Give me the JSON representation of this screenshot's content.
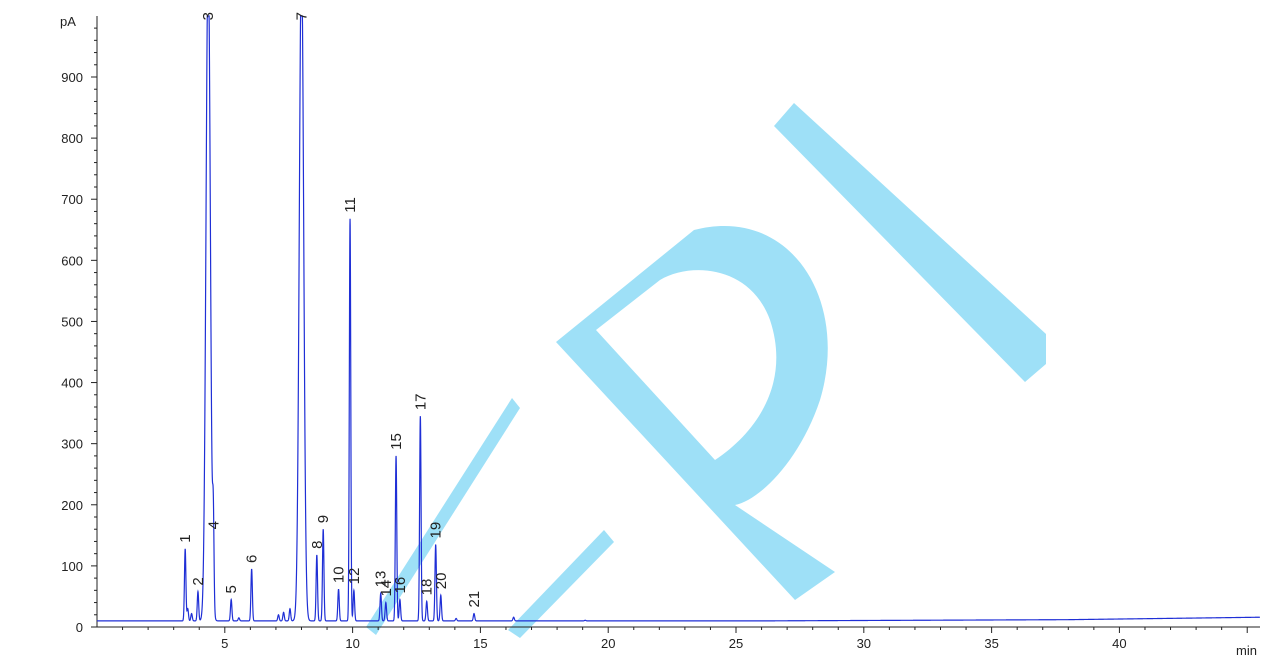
{
  "colors": {
    "trace": "#1f2fd6",
    "axis": "#222222",
    "watermark": "#9ee0f7"
  },
  "chart_data": {
    "type": "line",
    "title": "",
    "xlabel": "min",
    "ylabel": "pA",
    "xlim": [
      0,
      45.5
    ],
    "ylim": [
      0,
      1000
    ],
    "baseline": 10,
    "x_ticks": [
      5,
      10,
      15,
      20,
      25,
      30,
      35,
      40
    ],
    "x_tick_labels": [
      "5",
      "10",
      "15",
      "20",
      "25",
      "30",
      "35",
      "40"
    ],
    "y_ticks": [
      0,
      100,
      200,
      300,
      400,
      500,
      600,
      700,
      800,
      900
    ],
    "y_tick_labels": [
      "0",
      "100",
      "200",
      "300",
      "400",
      "500",
      "600",
      "700",
      "800",
      "900"
    ],
    "peaks": [
      {
        "label": "1",
        "time": 3.45,
        "height": 128
      },
      {
        "label": "2",
        "time": 3.95,
        "height": 58
      },
      {
        "label": "3",
        "time": 4.35,
        "height": 1100
      },
      {
        "label": "4",
        "time": 4.55,
        "height": 150
      },
      {
        "label": "5",
        "time": 5.25,
        "height": 45
      },
      {
        "label": "6",
        "time": 6.05,
        "height": 95
      },
      {
        "label": "7",
        "time": 8.0,
        "height": 1100
      },
      {
        "label": "8",
        "time": 8.6,
        "height": 118
      },
      {
        "label": "9",
        "time": 8.85,
        "height": 160
      },
      {
        "label": "10",
        "time": 9.45,
        "height": 62
      },
      {
        "label": "11",
        "time": 9.9,
        "height": 668
      },
      {
        "label": "12",
        "time": 10.05,
        "height": 60
      },
      {
        "label": "13",
        "time": 11.1,
        "height": 55
      },
      {
        "label": "14",
        "time": 11.3,
        "height": 40
      },
      {
        "label": "15",
        "time": 11.7,
        "height": 280
      },
      {
        "label": "16",
        "time": 11.85,
        "height": 45
      },
      {
        "label": "17",
        "time": 12.65,
        "height": 345
      },
      {
        "label": "18",
        "time": 12.9,
        "height": 42
      },
      {
        "label": "19",
        "time": 13.25,
        "height": 135
      },
      {
        "label": "20",
        "time": 13.45,
        "height": 52
      },
      {
        "label": "21",
        "time": 14.75,
        "height": 22
      }
    ],
    "minor_peaks": [
      {
        "time": 3.55,
        "height": 30
      },
      {
        "time": 3.7,
        "height": 22
      },
      {
        "time": 5.55,
        "height": 15
      },
      {
        "time": 7.1,
        "height": 20
      },
      {
        "time": 7.3,
        "height": 24
      },
      {
        "time": 7.55,
        "height": 30
      },
      {
        "time": 14.05,
        "height": 14
      },
      {
        "time": 16.3,
        "height": 16
      },
      {
        "time": 19.1,
        "height": 11
      }
    ],
    "drift": [
      [
        0,
        10
      ],
      [
        26,
        10
      ],
      [
        38,
        12
      ],
      [
        45.5,
        16
      ]
    ]
  }
}
